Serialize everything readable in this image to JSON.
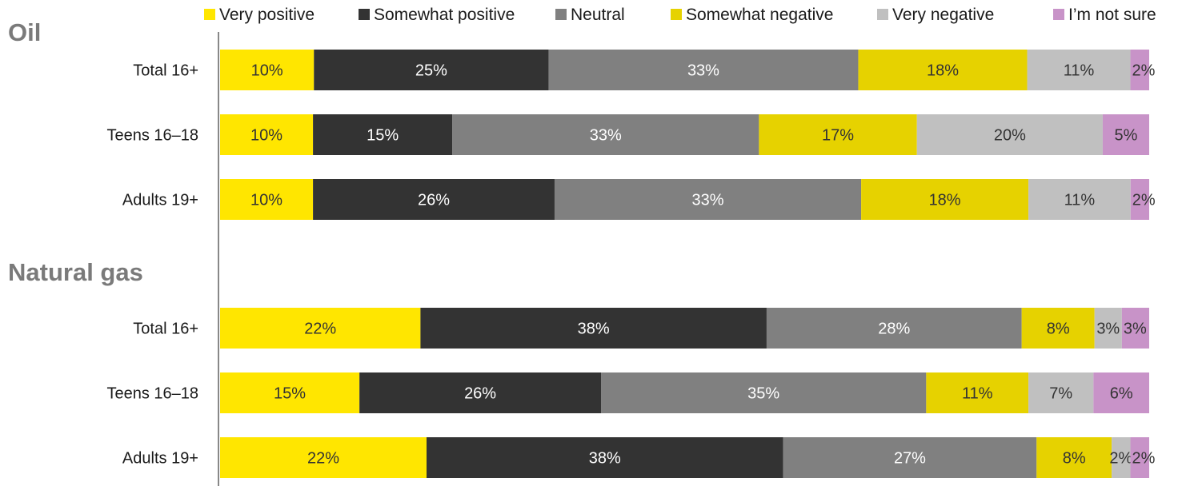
{
  "chart_data": {
    "type": "bar",
    "orientation": "horizontal",
    "stacked": true,
    "value_unit": "%",
    "legend_position": "top",
    "grid": false,
    "categories": [
      "Very positive",
      "Somewhat positive",
      "Neutral",
      "Somewhat negative",
      "Very negative",
      "I’m not sure"
    ],
    "colors": [
      "#ffe600",
      "#333333",
      "#808080",
      "#e6d200",
      "#c0c0c0",
      "#c893c8"
    ],
    "label_colors": [
      "#333333",
      "#ffffff",
      "#ffffff",
      "#333333",
      "#333333",
      "#333333"
    ],
    "groups": [
      {
        "title": "Oil",
        "rows": [
          {
            "label": "Total 16+",
            "values": [
              10,
              25,
              33,
              18,
              11,
              2
            ]
          },
          {
            "label": "Teens 16–18",
            "values": [
              10,
              15,
              33,
              17,
              20,
              5
            ]
          },
          {
            "label": "Adults 19+",
            "values": [
              10,
              26,
              33,
              18,
              11,
              2
            ]
          }
        ]
      },
      {
        "title": "Natural gas",
        "rows": [
          {
            "label": "Total 16+",
            "values": [
              22,
              38,
              28,
              8,
              3,
              3
            ]
          },
          {
            "label": "Teens 16–18",
            "values": [
              15,
              26,
              35,
              11,
              7,
              6
            ]
          },
          {
            "label": "Adults 19+",
            "values": [
              22,
              38,
              27,
              8,
              2,
              2
            ]
          }
        ]
      }
    ]
  }
}
